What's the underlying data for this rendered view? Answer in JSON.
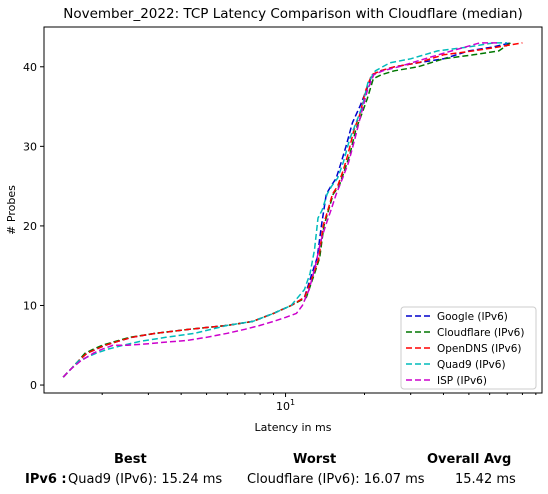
{
  "chart_data": {
    "type": "line",
    "title": "November_2022: TCP Latency Comparison with Cloudflare (median)",
    "xlabel": "Latency in ms",
    "ylabel": "# Probes",
    "xscale": "log",
    "xlim": [
      1.2,
      95
    ],
    "ylim": [
      -1,
      45
    ],
    "xticks": [
      {
        "value": 10,
        "label": "10^1"
      }
    ],
    "yticks": [
      0,
      10,
      20,
      30,
      40
    ],
    "grid": false,
    "legend_position": "lower-right",
    "series": [
      {
        "name": "Google (IPv6)",
        "color": "#0000cc",
        "x": [
          1.42,
          1.52,
          1.62,
          1.75,
          1.9,
          2.05,
          2.3,
          2.6,
          3.2,
          4.3,
          6.0,
          7.5,
          9.0,
          10.5,
          11.8,
          12.6,
          13.2,
          13.7,
          14.3,
          14.9,
          15.6,
          16.3,
          17.0,
          18.0,
          19.2,
          20.3,
          21.4,
          23.0,
          26.0,
          32.0,
          40.0,
          50.0,
          62.0,
          72.0
        ],
        "y": [
          1,
          2,
          3,
          4,
          4.5,
          5,
          5.5,
          6,
          6.5,
          7,
          7.5,
          8,
          9,
          10,
          11,
          14,
          16,
          20,
          24,
          25,
          26,
          28,
          30,
          33,
          35,
          37,
          39,
          39.5,
          40,
          40.5,
          41,
          42,
          42.5,
          43
        ]
      },
      {
        "name": "Cloudflare (IPv6)",
        "color": "#007700",
        "x": [
          1.42,
          1.52,
          1.62,
          1.72,
          1.85,
          2.0,
          2.25,
          2.55,
          3.2,
          4.3,
          6.0,
          7.5,
          9.0,
          10.5,
          12.0,
          12.9,
          13.5,
          14.0,
          14.6,
          15.2,
          16.0,
          16.8,
          17.6,
          18.5,
          19.5,
          20.5,
          21.6,
          23.2,
          26.0,
          32.0,
          40.0,
          52.0,
          65.0,
          72.0
        ],
        "y": [
          1,
          2,
          3,
          4,
          4.5,
          5,
          5.5,
          6,
          6.5,
          7,
          7.5,
          8,
          9,
          10,
          11,
          14,
          16,
          20,
          22,
          24,
          25,
          27,
          29,
          32,
          34,
          36,
          38.5,
          39,
          39.5,
          40,
          41,
          41.5,
          42,
          43
        ]
      },
      {
        "name": "OpenDNS (IPv6)",
        "color": "#ff0000",
        "x": [
          1.42,
          1.52,
          1.62,
          1.75,
          1.9,
          2.05,
          2.3,
          2.6,
          3.2,
          4.3,
          6.0,
          7.5,
          9.0,
          10.5,
          11.8,
          12.8,
          13.4,
          13.9,
          14.5,
          15.1,
          15.8,
          16.6,
          17.3,
          18.2,
          19.2,
          20.2,
          21.3,
          23.0,
          26.0,
          32.0,
          40.0,
          52.0,
          65.0,
          80.0
        ],
        "y": [
          1,
          2,
          3,
          4,
          4.5,
          5,
          5.5,
          6,
          6.5,
          7,
          7.5,
          8,
          9,
          10,
          11,
          14,
          16,
          20,
          22,
          24,
          25,
          27,
          29,
          32,
          34,
          37,
          39,
          39.5,
          40,
          40.5,
          41.5,
          42,
          42.5,
          43
        ]
      },
      {
        "name": "Quad9 (IPv6)",
        "color": "#00bbbb",
        "x": [
          1.42,
          1.52,
          1.62,
          1.75,
          1.9,
          2.1,
          2.4,
          2.8,
          3.5,
          4.5,
          6.0,
          7.5,
          9.0,
          10.5,
          11.8,
          12.4,
          12.9,
          13.3,
          13.8,
          14.4,
          15.0,
          15.8,
          16.6,
          17.6,
          18.6,
          19.6,
          20.6,
          22.0,
          25.0,
          30.0,
          38.0,
          50.0,
          62.0,
          70.0
        ],
        "y": [
          1,
          2,
          3,
          3.5,
          4,
          4.5,
          5,
          5.5,
          6,
          6.5,
          7.5,
          8,
          9,
          10,
          12,
          14,
          17,
          21,
          22,
          24,
          25,
          26,
          28,
          31,
          33,
          35,
          38,
          39.5,
          40.5,
          41,
          42,
          42.5,
          43,
          43
        ]
      },
      {
        "name": "ISP (IPv6)",
        "color": "#cc00cc",
        "x": [
          1.42,
          1.52,
          1.65,
          1.85,
          2.0,
          2.2,
          2.5,
          3.0,
          3.5,
          4.2,
          5.0,
          6.0,
          7.0,
          8.0,
          9.0,
          10.0,
          11.0,
          11.6,
          12.3,
          13.0,
          13.6,
          14.2,
          14.9,
          15.6,
          16.5,
          17.4,
          18.4,
          19.4,
          20.5,
          21.7,
          23.5,
          27.0,
          34.0,
          43.0,
          55.0,
          64.0
        ],
        "y": [
          1,
          2,
          3,
          4,
          4.5,
          5,
          5,
          5.2,
          5.4,
          5.6,
          6,
          6.5,
          7,
          7.5,
          8,
          8.5,
          9,
          10,
          12,
          15,
          18,
          20,
          22,
          24,
          26,
          28,
          31,
          34,
          37,
          39,
          39.5,
          40,
          41,
          42,
          43,
          43
        ]
      }
    ]
  },
  "summary": {
    "best_header": "Best",
    "worst_header": "Worst",
    "avg_header": "Overall Avg",
    "row_label": "IPv6 :",
    "best_value": "Quad9 (IPv6): 15.24 ms",
    "worst_value": "Cloudflare (IPv6): 16.07 ms",
    "avg_value": "15.42 ms"
  }
}
